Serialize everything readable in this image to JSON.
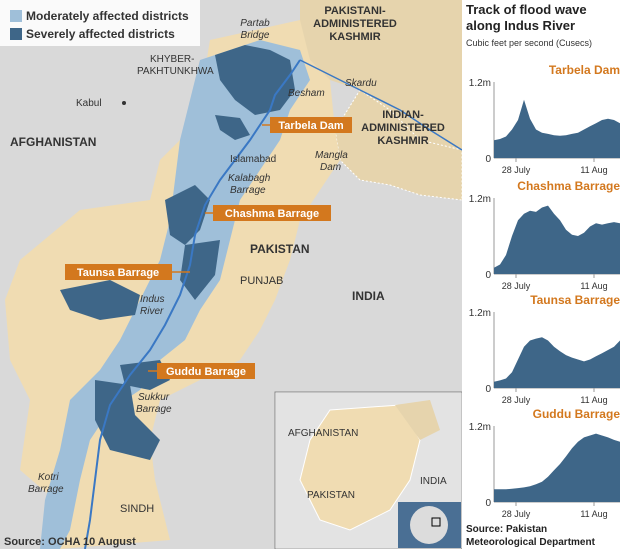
{
  "legend": {
    "moderate": "Moderately affected districts",
    "severe": "Severely affected districts"
  },
  "colors": {
    "moderate": "#9fbfd9",
    "severe": "#3e6688",
    "barrage_label": "#d3781e",
    "chart_fill": "#3e6688",
    "chart_title": "#d3781e",
    "pakistan_land": "#f0dcb2",
    "kashmir_land": "#e6d4ad",
    "other_land": "#d9d9d9",
    "river": "#3a78c4"
  },
  "barrages": {
    "tarbela": "Tarbela Dam",
    "chashma": "Chashma Barrage",
    "taunsa": "Taunsa Barrage",
    "guddu": "Guddu Barrage"
  },
  "places": {
    "partab_bridge_1": "Partab",
    "partab_bridge_2": "Bridge",
    "khyber_1": "KHYBER-",
    "khyber_2": "PAKHTUNKHWA",
    "kabul": "Kabul",
    "besham": "Besham",
    "afghanistan": "AFGHANISTAN",
    "islamabad": "Islamabad",
    "mangla_1": "Mangla",
    "mangla_2": "Dam",
    "kalabagh_1": "Kalabagh",
    "kalabagh_2": "Barrage",
    "pakistan": "PAKISTAN",
    "punjab": "PUNJAB",
    "india": "INDIA",
    "indus_1": "Indus",
    "indus_2": "River",
    "sukkur_1": "Sukkur",
    "sukkur_2": "Barrage",
    "kotri_1": "Kotri",
    "kotri_2": "Barrage",
    "sindh": "SINDH",
    "pak_kashmir_1": "PAKISTANI-",
    "pak_kashmir_2": "ADMINISTERED",
    "pak_kashmir_3": "KASHMIR",
    "skardu": "Skardu",
    "ind_kashmir_1": "INDIAN-",
    "ind_kashmir_2": "ADMINISTERED",
    "ind_kashmir_3": "KASHMIR"
  },
  "source_map": "Source: OCHA 10 August",
  "inset": {
    "afghanistan": "AFGHANISTAN",
    "pakistan": "PAKISTAN",
    "india": "INDIA"
  },
  "panel": {
    "title_1": "Track of flood wave",
    "title_2": "along Indus River",
    "subtitle": "Cubic feet per second (Cusecs)",
    "source_1": "Source: Pakistan",
    "source_2": "Meteorological Department"
  },
  "chart_data": [
    {
      "type": "area",
      "title": "Tarbela Dam",
      "x_ticks": [
        "28 July",
        "11 Aug"
      ],
      "y_ticks": [
        "0",
        "1.2m"
      ],
      "ylim": [
        0,
        1.2
      ],
      "values": [
        0.28,
        0.3,
        0.34,
        0.45,
        0.6,
        0.92,
        0.62,
        0.45,
        0.4,
        0.38,
        0.36,
        0.35,
        0.36,
        0.38,
        0.4,
        0.45,
        0.5,
        0.55,
        0.6,
        0.62,
        0.6,
        0.55
      ]
    },
    {
      "type": "area",
      "title": "Chashma Barrage",
      "x_ticks": [
        "28 July",
        "11 Aug"
      ],
      "y_ticks": [
        "0",
        "1.2m"
      ],
      "ylim": [
        0,
        1.2
      ],
      "values": [
        0.1,
        0.15,
        0.3,
        0.6,
        0.85,
        0.95,
        1.0,
        0.98,
        1.05,
        1.08,
        0.95,
        0.85,
        0.7,
        0.62,
        0.6,
        0.65,
        0.75,
        0.8,
        0.78,
        0.8,
        0.82,
        0.8
      ]
    },
    {
      "type": "area",
      "title": "Taunsa Barrage",
      "x_ticks": [
        "28 July",
        "11 Aug"
      ],
      "y_ticks": [
        "0",
        "1.2m"
      ],
      "ylim": [
        0,
        1.2
      ],
      "values": [
        0.1,
        0.12,
        0.15,
        0.25,
        0.45,
        0.65,
        0.75,
        0.78,
        0.8,
        0.75,
        0.65,
        0.58,
        0.52,
        0.48,
        0.45,
        0.42,
        0.45,
        0.5,
        0.55,
        0.6,
        0.65,
        0.75
      ]
    },
    {
      "type": "area",
      "title": "Guddu Barrage",
      "x_ticks": [
        "28 July",
        "11 Aug"
      ],
      "y_ticks": [
        "0",
        "1.2m"
      ],
      "ylim": [
        0,
        1.2
      ],
      "values": [
        0.2,
        0.2,
        0.2,
        0.21,
        0.22,
        0.23,
        0.25,
        0.28,
        0.32,
        0.4,
        0.5,
        0.6,
        0.72,
        0.85,
        0.95,
        1.02,
        1.05,
        1.08,
        1.05,
        1.02,
        0.98,
        0.95
      ]
    }
  ]
}
